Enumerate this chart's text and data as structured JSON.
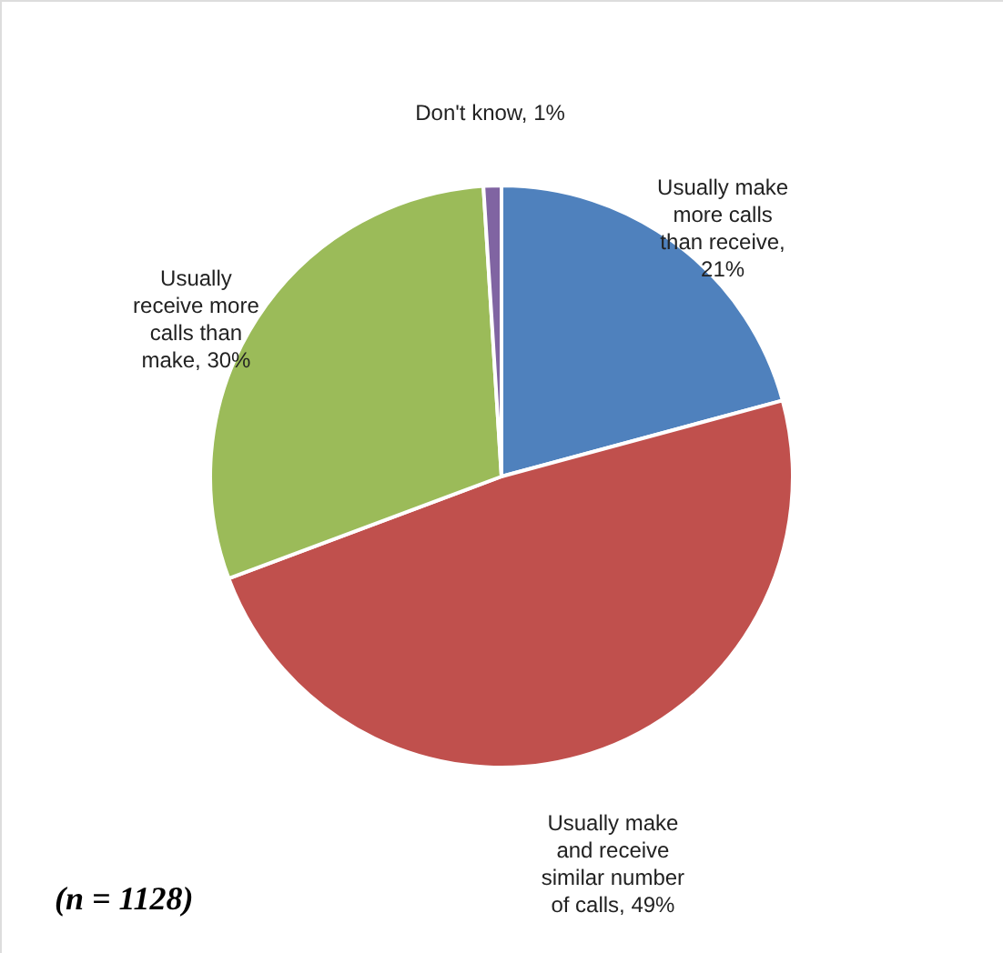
{
  "chart_data": {
    "type": "pie",
    "categories": [
      "Usually make more calls than receive, 21%",
      "Usually make and receive similar number of calls, 49%",
      "Usually receive more calls than make, 30%",
      "Don't know, 1%"
    ],
    "values": [
      21,
      49,
      30,
      1
    ],
    "colors": [
      "#4f81bd",
      "#c0504d",
      "#9bbb59",
      "#8064a2"
    ],
    "legend": false,
    "annotations": [
      "(n = 1128)"
    ]
  }
}
